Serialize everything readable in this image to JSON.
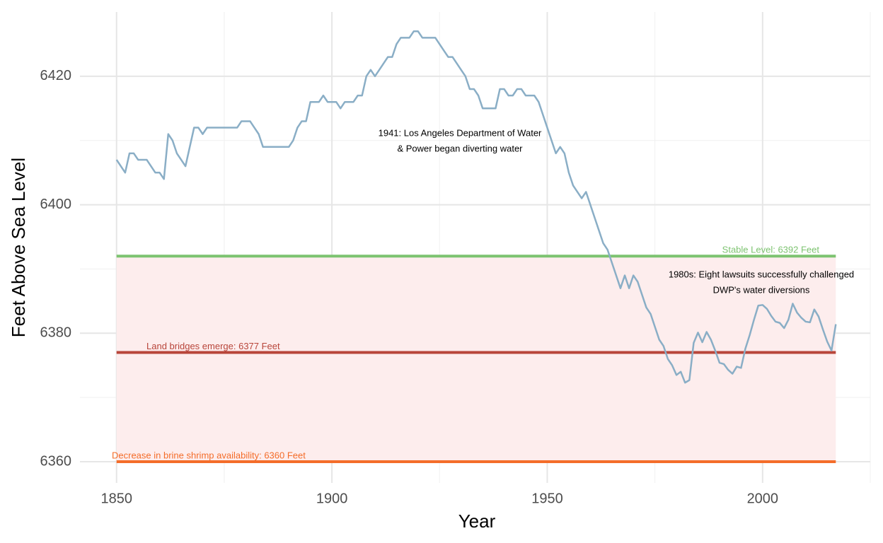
{
  "chart_data": {
    "type": "line",
    "x_label": "Year",
    "y_label": "Feet Above Sea Level",
    "xlim": [
      1841.5,
      2025
    ],
    "xticks": [
      1850,
      1900,
      1950,
      2000
    ],
    "x_minor_ticks": [
      1875,
      1925,
      1975,
      2025
    ],
    "ylim": [
      6356.7,
      6430
    ],
    "yticks": [
      6360,
      6380,
      6400,
      6420
    ],
    "y_minor_ticks": [
      6370,
      6390,
      6410
    ],
    "grid": true,
    "x": [
      1850,
      1851,
      1852,
      1853,
      1854,
      1855,
      1856,
      1857,
      1858,
      1859,
      1860,
      1861,
      1862,
      1863,
      1864,
      1865,
      1866,
      1867,
      1868,
      1869,
      1870,
      1871,
      1872,
      1873,
      1874,
      1875,
      1876,
      1877,
      1878,
      1879,
      1880,
      1881,
      1882,
      1883,
      1884,
      1885,
      1886,
      1887,
      1888,
      1889,
      1890,
      1891,
      1892,
      1893,
      1894,
      1895,
      1896,
      1897,
      1898,
      1899,
      1900,
      1901,
      1902,
      1903,
      1904,
      1905,
      1906,
      1907,
      1908,
      1909,
      1910,
      1911,
      1912,
      1913,
      1914,
      1915,
      1916,
      1917,
      1918,
      1919,
      1920,
      1921,
      1922,
      1923,
      1924,
      1925,
      1926,
      1927,
      1928,
      1929,
      1930,
      1931,
      1932,
      1933,
      1934,
      1935,
      1936,
      1937,
      1938,
      1939,
      1940,
      1941,
      1942,
      1943,
      1944,
      1945,
      1946,
      1947,
      1948,
      1949,
      1950,
      1951,
      1952,
      1953,
      1954,
      1955,
      1956,
      1957,
      1958,
      1959,
      1960,
      1961,
      1962,
      1963,
      1964,
      1965,
      1966,
      1967,
      1968,
      1969,
      1970,
      1971,
      1972,
      1973,
      1974,
      1975,
      1976,
      1977,
      1978,
      1979,
      1980,
      1981,
      1982,
      1983,
      1984,
      1985,
      1986,
      1987,
      1988,
      1989,
      1990,
      1991,
      1992,
      1993,
      1994,
      1995,
      1996,
      1997,
      1998,
      1999,
      2000,
      2001,
      2002,
      2003,
      2004,
      2005,
      2006,
      2007,
      2008,
      2009,
      2010,
      2011,
      2012,
      2013,
      2014,
      2015,
      2016,
      2017
    ],
    "series": [
      {
        "color": "#8aaec6",
        "values": [
          6407,
          6406,
          6405,
          6408,
          6408,
          6407,
          6407,
          6407,
          6406,
          6405,
          6405,
          6404,
          6411,
          6410,
          6408,
          6407,
          6406,
          6409,
          6412,
          6412,
          6411,
          6412,
          6412,
          6412,
          6412,
          6412,
          6412,
          6412,
          6412,
          6413,
          6413,
          6413,
          6412,
          6411,
          6409,
          6409,
          6409,
          6409,
          6409,
          6409,
          6409,
          6410,
          6412,
          6413,
          6413,
          6416,
          6416,
          6416,
          6417,
          6416,
          6416,
          6416,
          6415,
          6416,
          6416,
          6416,
          6417,
          6417,
          6420,
          6421,
          6420,
          6421,
          6422,
          6423,
          6423,
          6425,
          6426,
          6426,
          6426,
          6427,
          6427,
          6426,
          6426,
          6426,
          6426,
          6425,
          6424,
          6423,
          6423,
          6422,
          6421,
          6420,
          6418,
          6418,
          6417,
          6415,
          6415,
          6415,
          6415,
          6418,
          6418,
          6417,
          6417,
          6418,
          6418,
          6417,
          6417,
          6417,
          6416,
          6414,
          6412,
          6410,
          6408,
          6409,
          6408,
          6405,
          6403,
          6402,
          6401,
          6402,
          6400,
          6398,
          6396,
          6394,
          6393,
          6391,
          6389,
          6387,
          6389,
          6387,
          6389,
          6388,
          6386,
          6384,
          6383,
          6381,
          6379,
          6378,
          6376,
          6375,
          6373.5,
          6374,
          6372.3,
          6372.7,
          6378.5,
          6380.1,
          6378.6,
          6380.2,
          6379,
          6377.3,
          6375.4,
          6375.2,
          6374.3,
          6373.7,
          6374.8,
          6374.6,
          6377.6,
          6379.7,
          6382.1,
          6384.3,
          6384.4,
          6383.8,
          6382.7,
          6381.8,
          6381.6,
          6380.8,
          6382.1,
          6384.6,
          6383.2,
          6382.4,
          6381.8,
          6381.7,
          6383.7,
          6382.6,
          6380.6,
          6378.7,
          6377.3,
          6381.4
        ]
      }
    ],
    "shaded_range": {
      "values": [
        6360,
        6392
      ],
      "color": "#fdeded"
    },
    "reference_lines": [
      {
        "value": 6392,
        "label": "Stable Level: 6392 Feet",
        "color": "#7dc370"
      },
      {
        "value": 6377,
        "label": "Land bridges emerge: 6377 Feet",
        "color": "#b8453a"
      },
      {
        "value": 6360,
        "label": "Decrease in brine shrimp availability: 6360 Feet",
        "color": "#f46d2a"
      }
    ],
    "annotations": [
      {
        "lines": [
          "1941: Los Angeles Department of Water",
          "& Power began diverting water"
        ]
      },
      {
        "lines": [
          "1980s: Eight lawsuits successfully challenged",
          "DWP's water diversions"
        ]
      }
    ]
  }
}
